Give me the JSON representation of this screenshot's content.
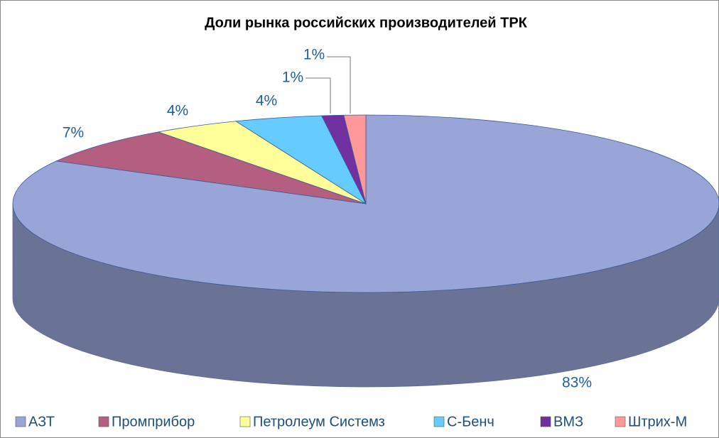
{
  "chart_data": {
    "type": "pie3d",
    "title": "Доли рынка российских производителей ТРК",
    "categories": [
      "АЗТ",
      "Промприбор",
      "Петролеум Системз",
      "С-Бенч",
      "ВМЗ",
      "Штрих-М"
    ],
    "values": [
      83,
      7,
      4,
      4,
      1,
      1
    ],
    "value_labels": [
      "83%",
      "7%",
      "4%",
      "4%",
      "1%",
      "1%"
    ],
    "colors": [
      "#98a5d6",
      "#b45f7f",
      "#ffff99",
      "#66ccff",
      "#7030a0",
      "#ff9999"
    ],
    "legend": "bottom"
  }
}
